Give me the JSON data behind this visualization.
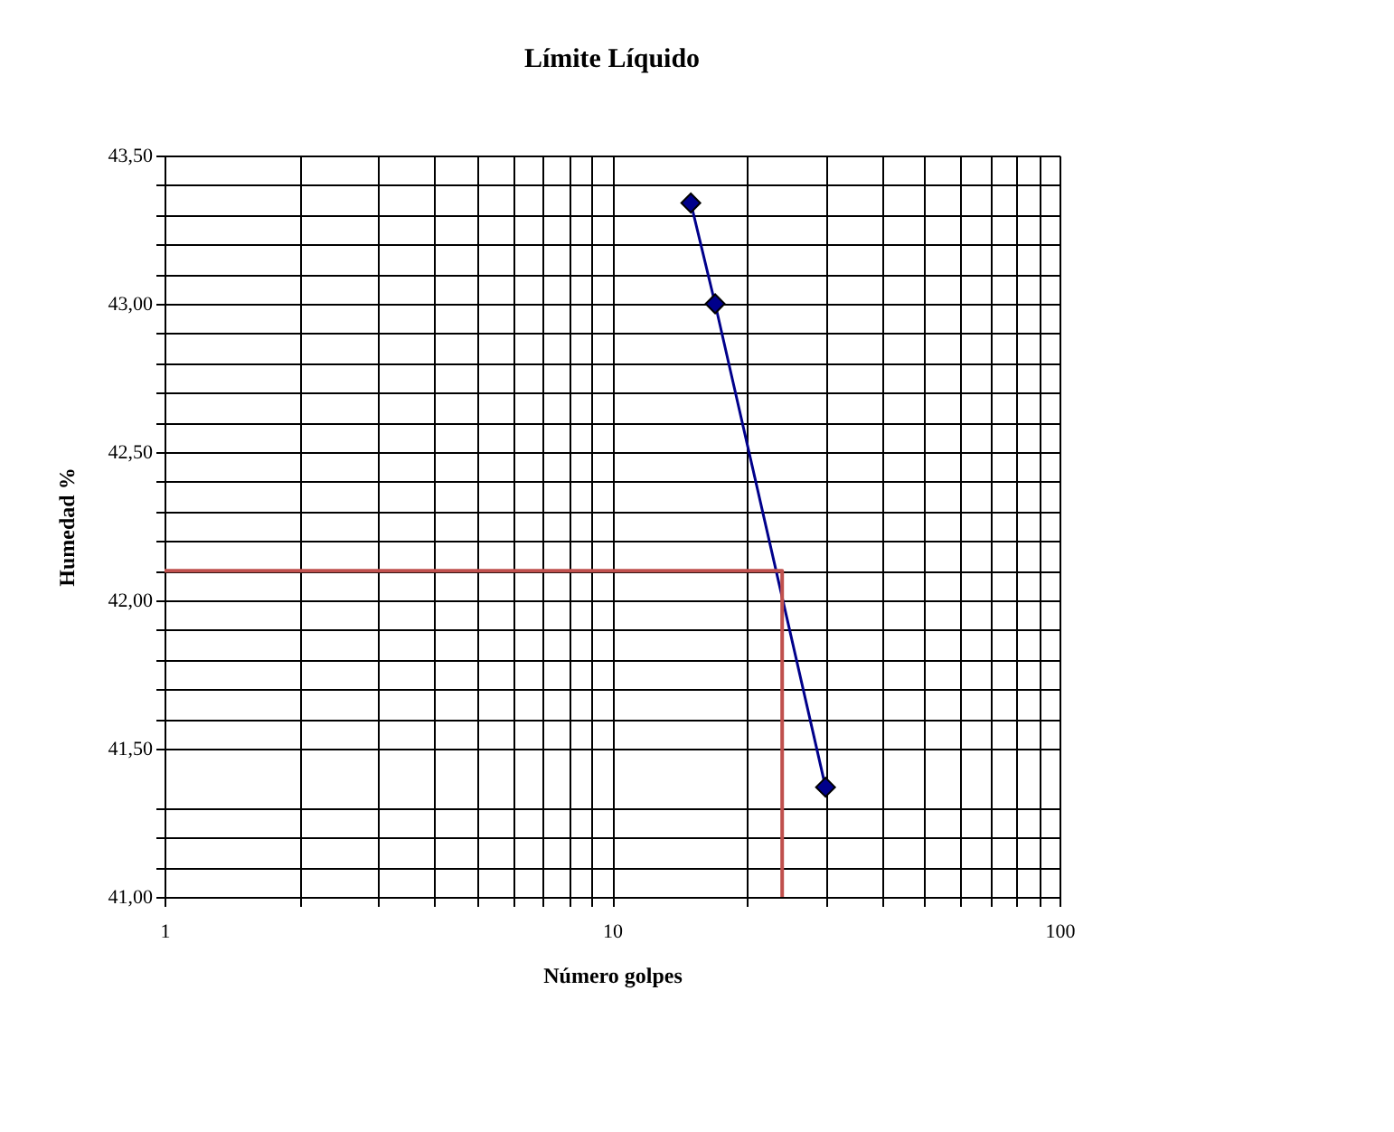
{
  "chart_data": {
    "type": "line",
    "title": "Límite Líquido",
    "xlabel": "Número golpes",
    "ylabel": "Humedad %",
    "log": "x",
    "grid": true,
    "marker": "diamond",
    "line_style": "solid",
    "xlim": [
      1,
      100
    ],
    "ylim": [
      41.0,
      43.5
    ],
    "xticks": [
      1,
      {
        "value": 2,
        "label": null
      },
      {
        "value": 3,
        "label": null
      },
      {
        "value": 4,
        "label": null
      },
      {
        "value": 5,
        "label": null
      },
      {
        "value": 6,
        "label": null
      },
      {
        "value": 7,
        "label": null
      },
      {
        "value": 8,
        "label": null
      },
      {
        "value": 9,
        "label": null
      },
      10,
      {
        "value": 20,
        "label": null
      },
      {
        "value": 30,
        "label": null
      },
      {
        "value": 40,
        "label": null
      },
      {
        "value": 50,
        "label": null
      },
      {
        "value": 60,
        "label": null
      },
      {
        "value": 70,
        "label": null
      },
      {
        "value": 80,
        "label": null
      },
      {
        "value": 90,
        "label": null
      },
      100
    ],
    "yticks": [
      {
        "value": 41.0,
        "label": "41,00"
      },
      {
        "value": 41.1,
        "label": null
      },
      {
        "value": 41.2,
        "label": null
      },
      {
        "value": 41.3,
        "label": null
      },
      {
        "value": 41.5,
        "label": "41,50"
      },
      {
        "value": 41.6,
        "label": null
      },
      {
        "value": 41.7,
        "label": null
      },
      {
        "value": 41.8,
        "label": null
      },
      {
        "value": 41.9,
        "label": null
      },
      {
        "value": 42.0,
        "label": "42,00"
      },
      {
        "value": 42.1,
        "label": null
      },
      {
        "value": 42.2,
        "label": null
      },
      {
        "value": 42.3,
        "label": null
      },
      {
        "value": 42.4,
        "label": null
      },
      {
        "value": 42.5,
        "label": "42,50"
      },
      {
        "value": 42.6,
        "label": null
      },
      {
        "value": 42.7,
        "label": null
      },
      {
        "value": 42.8,
        "label": null
      },
      {
        "value": 42.9,
        "label": null
      },
      {
        "value": 43.0,
        "label": "43,00"
      },
      {
        "value": 43.1,
        "label": null
      },
      {
        "value": 43.2,
        "label": null
      },
      {
        "value": 43.3,
        "label": null
      },
      {
        "value": 43.4,
        "label": null
      },
      {
        "value": 43.5,
        "label": "43,50"
      }
    ],
    "series": [
      {
        "color": "#00008b",
        "x": [
          15,
          17,
          30
        ],
        "values": [
          43.34,
          43.0,
          41.37
        ]
      },
      {
        "type": "line",
        "marker": "none",
        "color": "#c0504d",
        "x": [
          1,
          24,
          24
        ],
        "values": [
          42.1,
          42.1,
          41.0
        ]
      }
    ]
  }
}
